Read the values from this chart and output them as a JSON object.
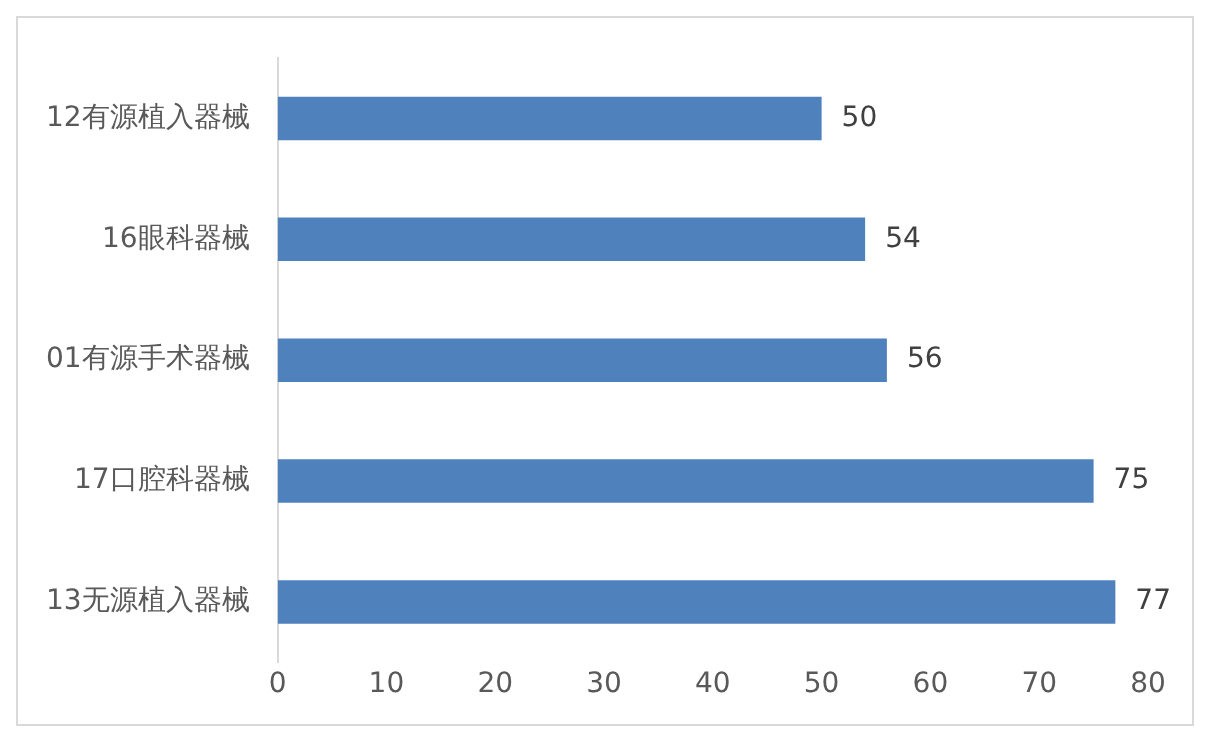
{
  "chart_data": {
    "type": "bar",
    "orientation": "horizontal",
    "categories": [
      "12有源植入器械",
      "16眼科器械",
      "01有源手术器械",
      "17口腔科器械",
      "13无源植入器械"
    ],
    "values": [
      50,
      54,
      56,
      75,
      77
    ],
    "color": "#4f81bd",
    "xlim": [
      0,
      80
    ],
    "xticks": [
      0,
      10,
      20,
      30,
      40,
      50,
      60,
      70,
      80
    ],
    "data_labels": true,
    "grid": false,
    "legend": false
  }
}
